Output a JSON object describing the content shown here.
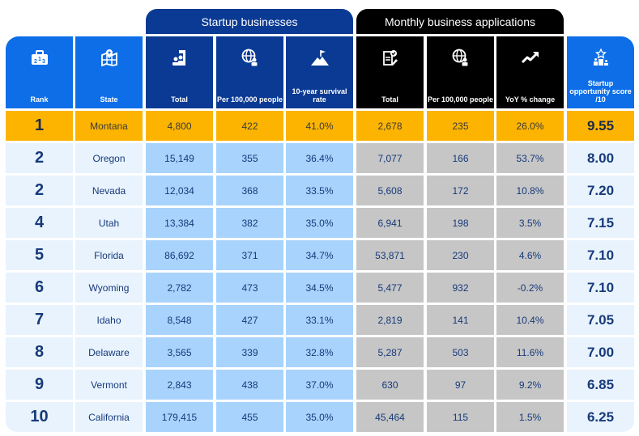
{
  "groups": {
    "startup": "Startup businesses",
    "monthly": "Monthly business applications"
  },
  "headers": [
    {
      "label": "Rank",
      "icon": "podium-icon"
    },
    {
      "label": "State",
      "icon": "map-pin-icon"
    },
    {
      "label": "Total",
      "icon": "founders-flag-icon"
    },
    {
      "label": "Per 100,000 people",
      "icon": "globe-person-icon"
    },
    {
      "label": "10-year survival rate",
      "icon": "mountain-flag-icon"
    },
    {
      "label": "Total",
      "icon": "checklist-icon"
    },
    {
      "label": "Per 100,000 people",
      "icon": "globe-person-icon"
    },
    {
      "label": "YoY % change",
      "icon": "trend-up-icon"
    },
    {
      "label": "Startup opportunity score /10",
      "icon": "star-podium-icon"
    }
  ],
  "rows": [
    {
      "rank": "1",
      "state": "Montana",
      "startup_total": "4,800",
      "startup_per100k": "422",
      "survival": "41.0%",
      "apps_total": "2,678",
      "apps_per100k": "235",
      "yoy": "26.0%",
      "score": "9.55"
    },
    {
      "rank": "2",
      "state": "Oregon",
      "startup_total": "15,149",
      "startup_per100k": "355",
      "survival": "36.4%",
      "apps_total": "7,077",
      "apps_per100k": "166",
      "yoy": "53.7%",
      "score": "8.00"
    },
    {
      "rank": "2",
      "state": "Nevada",
      "startup_total": "12,034",
      "startup_per100k": "368",
      "survival": "33.5%",
      "apps_total": "5,608",
      "apps_per100k": "172",
      "yoy": "10.8%",
      "score": "7.20"
    },
    {
      "rank": "4",
      "state": "Utah",
      "startup_total": "13,384",
      "startup_per100k": "382",
      "survival": "35.0%",
      "apps_total": "6,941",
      "apps_per100k": "198",
      "yoy": "3.5%",
      "score": "7.15"
    },
    {
      "rank": "5",
      "state": "Florida",
      "startup_total": "86,692",
      "startup_per100k": "371",
      "survival": "34.7%",
      "apps_total": "53,871",
      "apps_per100k": "230",
      "yoy": "4.6%",
      "score": "7.10"
    },
    {
      "rank": "6",
      "state": "Wyoming",
      "startup_total": "2,782",
      "startup_per100k": "473",
      "survival": "34.5%",
      "apps_total": "5,477",
      "apps_per100k": "932",
      "yoy": "-0.2%",
      "score": "7.10"
    },
    {
      "rank": "7",
      "state": "Idaho",
      "startup_total": "8,548",
      "startup_per100k": "427",
      "survival": "33.1%",
      "apps_total": "2,819",
      "apps_per100k": "141",
      "yoy": "10.4%",
      "score": "7.05"
    },
    {
      "rank": "8",
      "state": "Delaware",
      "startup_total": "3,565",
      "startup_per100k": "339",
      "survival": "32.8%",
      "apps_total": "5,287",
      "apps_per100k": "503",
      "yoy": "11.6%",
      "score": "7.00"
    },
    {
      "rank": "9",
      "state": "Vermont",
      "startup_total": "2,843",
      "startup_per100k": "438",
      "survival": "37.0%",
      "apps_total": "630",
      "apps_per100k": "97",
      "yoy": "9.2%",
      "score": "6.85"
    },
    {
      "rank": "10",
      "state": "California",
      "startup_total": "179,415",
      "startup_per100k": "455",
      "survival": "35.0%",
      "apps_total": "45,464",
      "apps_per100k": "115",
      "yoy": "1.5%",
      "score": "6.25"
    }
  ],
  "colors": {
    "highlight": "#fcb400",
    "navy": "#0a3a93",
    "bright_blue": "#0d6ee8",
    "light_blue": "#a8d3fd",
    "pale_blue": "#e8f3fe",
    "gray": "#c6c6c6",
    "text": "#173a7a"
  }
}
